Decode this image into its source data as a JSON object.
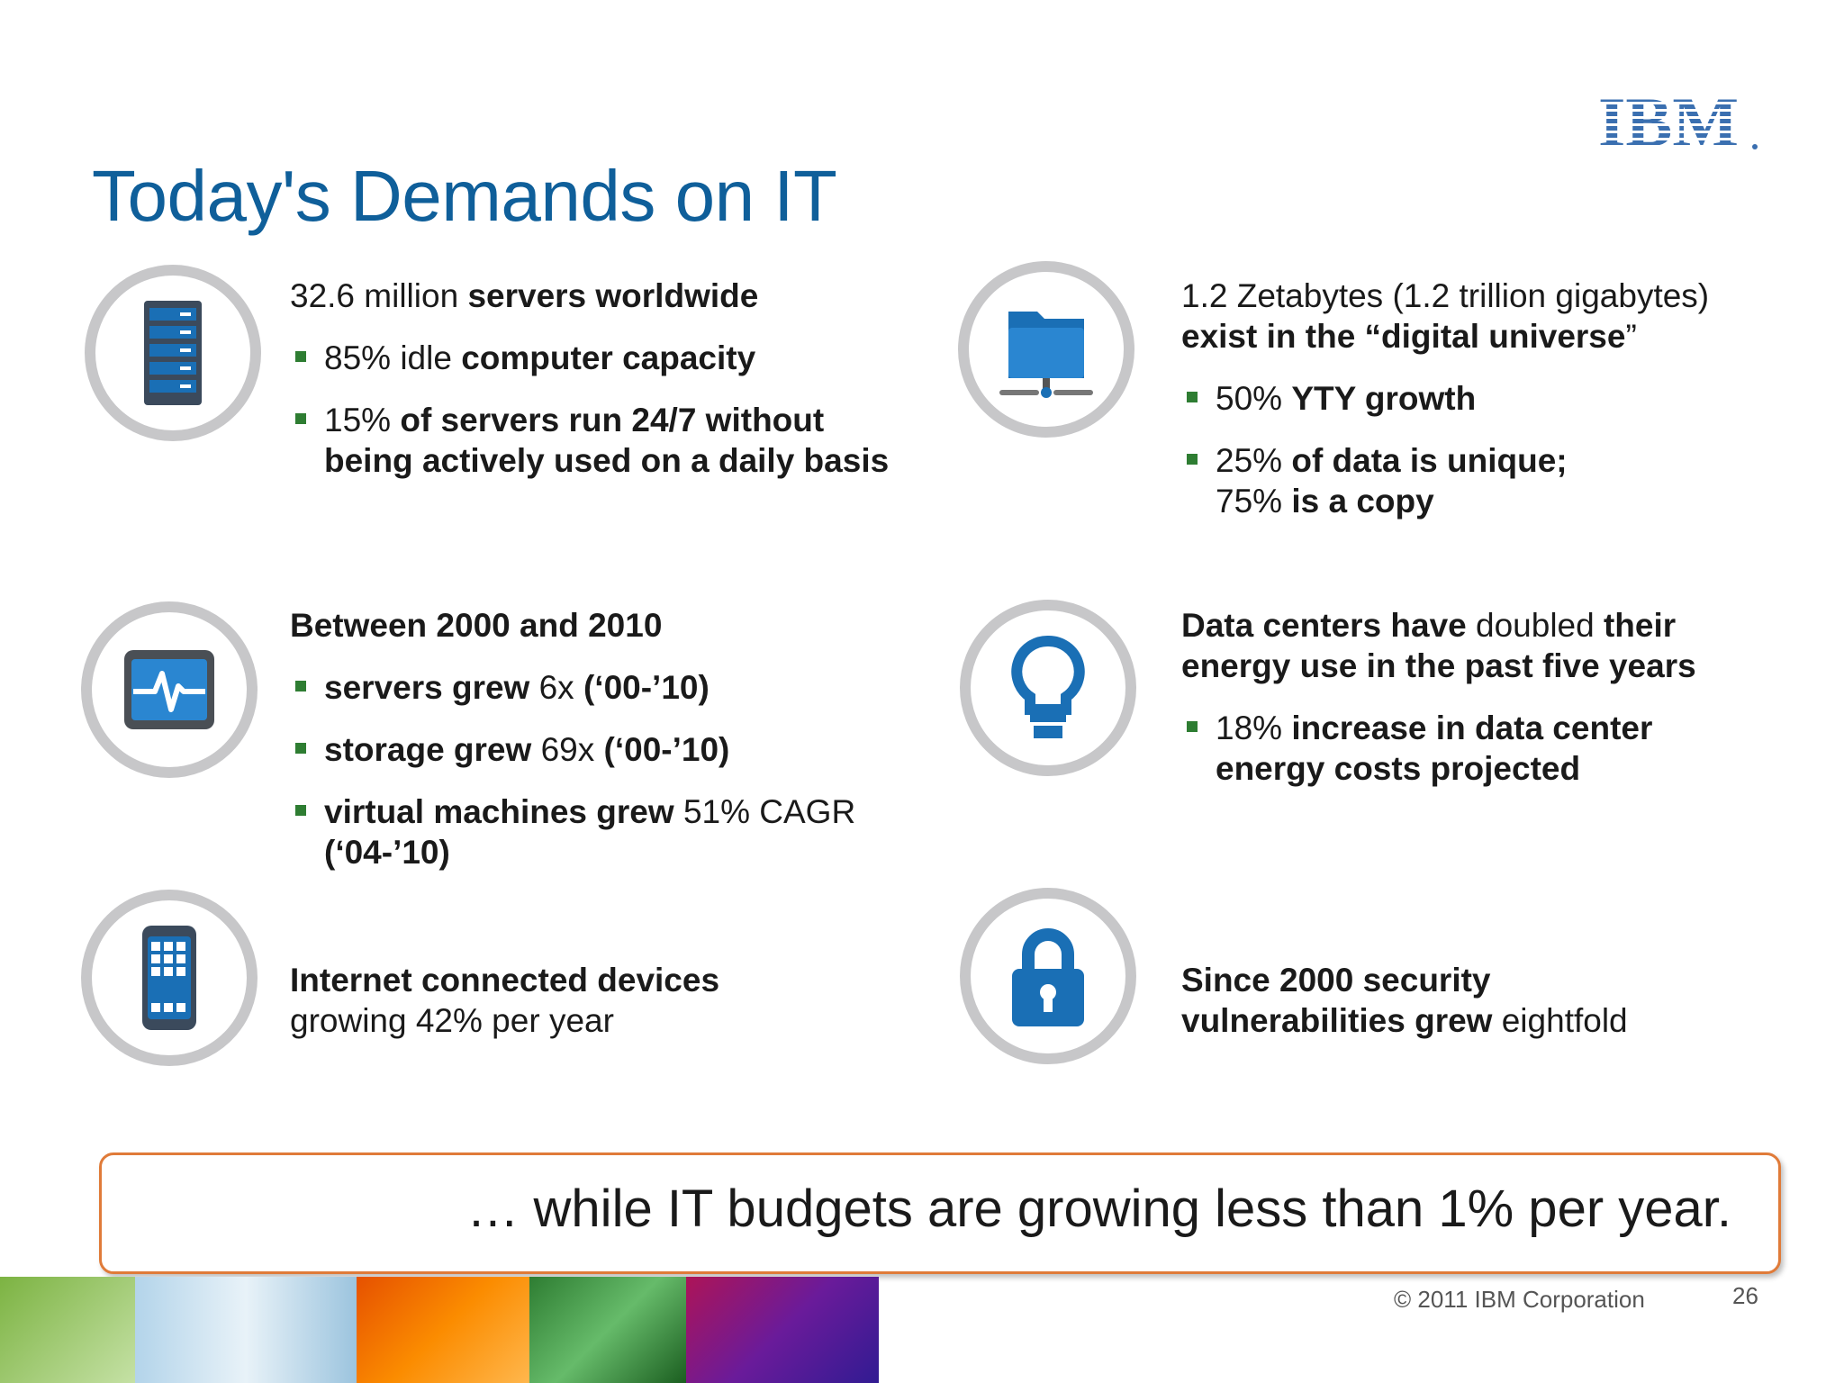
{
  "brand": {
    "logo_text": "IBM"
  },
  "slide": {
    "title": "Today's Demands on IT"
  },
  "blocks": {
    "servers": {
      "heading": [
        {
          "t": "32.6 million ",
          "b": false
        },
        {
          "t": "servers worldwide",
          "b": true
        }
      ],
      "bullets": [
        [
          [
            {
              "t": "85% idle ",
              "b": false
            },
            {
              "t": "computer capacity",
              "b": true
            }
          ]
        ],
        [
          [
            {
              "t": "15% ",
              "b": false
            },
            {
              "t": "of servers run 24/7 without",
              "b": true
            }
          ],
          [
            {
              "t": "being actively used on a daily basis",
              "b": true
            }
          ]
        ]
      ]
    },
    "data": {
      "heading": [
        [
          {
            "t": "1.2 Zetabytes (1.2 trillion gigabytes)",
            "b": false
          }
        ],
        [
          {
            "t": "exist in the “digital universe",
            "b": true
          },
          {
            "t": "”",
            "b": false
          }
        ]
      ],
      "bullets": [
        [
          [
            {
              "t": "50% ",
              "b": false
            },
            {
              "t": "YTY growth",
              "b": true
            }
          ]
        ],
        [
          [
            {
              "t": "25% ",
              "b": false
            },
            {
              "t": "of data is unique;",
              "b": true
            }
          ],
          [
            {
              "t": "75% ",
              "b": false
            },
            {
              "t": "is a copy",
              "b": true
            }
          ]
        ]
      ]
    },
    "growth": {
      "heading": [
        {
          "t": "Between 2000 and 2010",
          "b": true
        }
      ],
      "bullets": [
        [
          [
            {
              "t": "servers grew ",
              "b": true
            },
            {
              "t": "6x ",
              "b": false
            },
            {
              "t": "(‘00-’10)",
              "b": true
            }
          ]
        ],
        [
          [
            {
              "t": "storage grew ",
              "b": true
            },
            {
              "t": "69x ",
              "b": false
            },
            {
              "t": "(‘00-’10)",
              "b": true
            }
          ]
        ],
        [
          [
            {
              "t": "virtual machines grew ",
              "b": true
            },
            {
              "t": "51% CAGR",
              "b": false
            }
          ],
          [
            {
              "t": "(‘04-’10)",
              "b": true
            }
          ]
        ]
      ]
    },
    "energy": {
      "heading": [
        [
          {
            "t": "Data centers have ",
            "b": true
          },
          {
            "t": "doubled ",
            "b": false
          },
          {
            "t": "their",
            "b": true
          }
        ],
        [
          {
            "t": "energy use in the past five years",
            "b": true
          }
        ]
      ],
      "bullets": [
        [
          [
            {
              "t": "18% ",
              "b": false
            },
            {
              "t": "increase in data center",
              "b": true
            }
          ],
          [
            {
              "t": "energy costs projected",
              "b": true
            }
          ]
        ]
      ]
    },
    "devices": {
      "heading": [
        [
          {
            "t": "Internet connected devices",
            "b": true
          }
        ],
        [
          {
            "t": "growing 42% per year",
            "b": false
          }
        ]
      ]
    },
    "security": {
      "heading": [
        [
          {
            "t": "Since 2000 security",
            "b": true
          }
        ],
        [
          {
            "t": "vulnerabilities grew ",
            "b": true
          },
          {
            "t": "eightfold",
            "b": false
          }
        ]
      ]
    }
  },
  "icons": [
    "server-rack-icon",
    "network-folder-icon",
    "activity-monitor-icon",
    "lightbulb-icon",
    "smartphone-icon",
    "padlock-icon"
  ],
  "callout": {
    "text": "… while IT budgets are growing less than 1% per year."
  },
  "footer": {
    "copyright": "© 2011  IBM Corporation",
    "page": "26"
  },
  "colors": {
    "title_blue": "#0f5f9a",
    "icon_blue": "#1a6fb5",
    "ring_gray": "#c7c7c9",
    "bullet_green": "#2e7d32",
    "callout_border": "#e07b39"
  }
}
